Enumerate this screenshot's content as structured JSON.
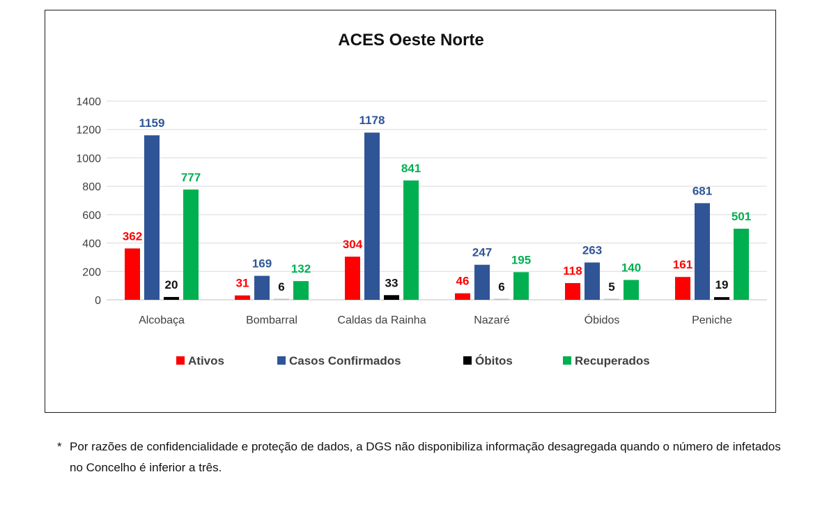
{
  "chart_data": {
    "type": "bar",
    "title": "ACES Oeste Norte",
    "categories": [
      "Alcobaça",
      "Bombarral",
      "Caldas da Rainha",
      "Nazaré",
      "Óbidos",
      "Peniche"
    ],
    "series": [
      {
        "name": "Ativos",
        "color": "#ff0000",
        "values": [
          362,
          31,
          304,
          46,
          118,
          161
        ]
      },
      {
        "name": "Casos Confirmados",
        "color": "#2f5597",
        "values": [
          1159,
          169,
          1178,
          247,
          263,
          681
        ]
      },
      {
        "name": "Óbitos",
        "color": "#000000",
        "values": [
          20,
          6,
          33,
          6,
          5,
          19
        ]
      },
      {
        "name": "Recuperados",
        "color": "#00b050",
        "values": [
          777,
          132,
          841,
          195,
          140,
          501
        ]
      }
    ],
    "yticks": [
      "0",
      "200",
      "400",
      "600",
      "800",
      "1000",
      "1200",
      "1400"
    ],
    "ylim": [
      0,
      1400
    ],
    "grid": true,
    "legend_position": "bottom"
  },
  "footnote": {
    "marker": "*",
    "text": "Por razões de confidencialidade e proteção de dados, a DGS não disponibiliza informação desagregada quando o número de infetados no Concelho é inferior a três."
  }
}
